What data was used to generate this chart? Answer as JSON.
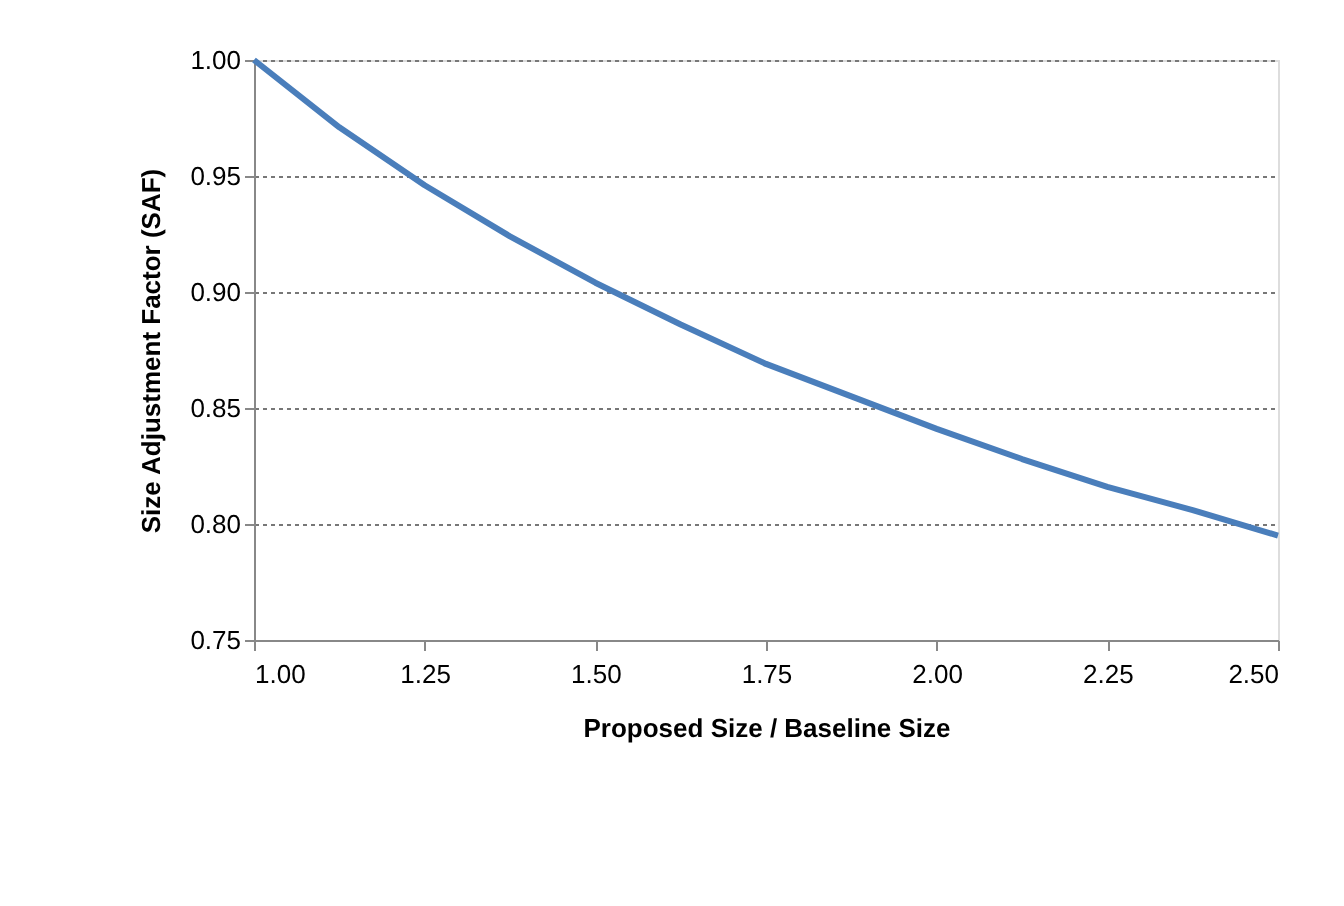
{
  "chart_data": {
    "type": "line",
    "xlabel": "Proposed Size / Baseline Size",
    "ylabel": "Size Adjustment Factor (SAF)",
    "x": [
      1.0,
      1.125,
      1.25,
      1.375,
      1.5,
      1.625,
      1.75,
      1.875,
      2.0,
      2.125,
      2.25,
      2.375,
      2.5
    ],
    "series": [
      {
        "color": "#4a7ebb",
        "values": [
          1.0,
          0.971,
          0.946,
          0.924,
          0.904,
          0.886,
          0.869,
          0.855,
          0.841,
          0.828,
          0.816,
          0.806,
          0.795
        ]
      }
    ],
    "xlim": [
      1.0,
      2.5
    ],
    "xticks": [
      {
        "value": 1.0,
        "label": "1.00"
      },
      {
        "value": 1.25,
        "label": "1.25"
      },
      {
        "value": 1.5,
        "label": "1.50"
      },
      {
        "value": 1.75,
        "label": "1.75"
      },
      {
        "value": 2.0,
        "label": "2.00"
      },
      {
        "value": 2.25,
        "label": "2.25"
      },
      {
        "value": 2.5,
        "label": "2.50"
      }
    ],
    "ylim": [
      0.75,
      1.0
    ],
    "yticks": [
      {
        "value": 0.75,
        "label": "0.75"
      },
      {
        "value": 0.8,
        "label": "0.80"
      },
      {
        "value": 0.85,
        "label": "0.85"
      },
      {
        "value": 0.9,
        "label": "0.90"
      },
      {
        "value": 0.95,
        "label": "0.95"
      },
      {
        "value": 1.0,
        "label": "1.00"
      }
    ],
    "grid": "y",
    "legend": false,
    "marker": "none",
    "line_style": "solid"
  }
}
